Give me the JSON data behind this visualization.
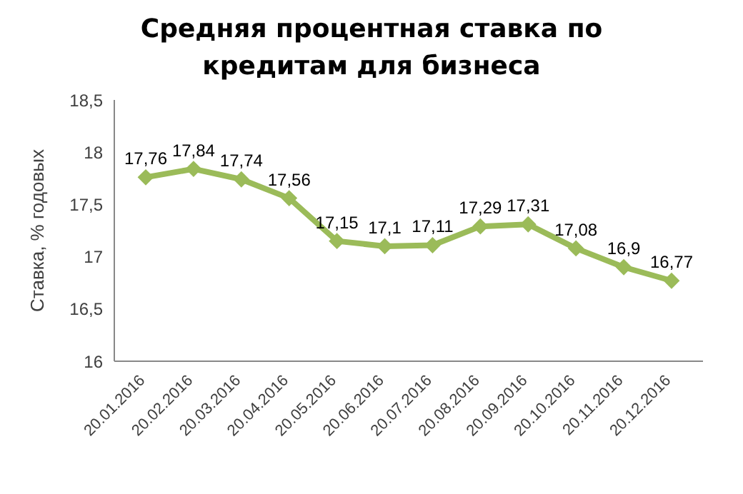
{
  "chart_data": {
    "type": "line",
    "title": "Средняя процентная ставка по кредитам для бизнеса",
    "ylabel": "Ставка, % годовых",
    "categories": [
      "20.01.2016",
      "20.02.2016",
      "20.03.2016",
      "20.04.2016",
      "20.05.2016",
      "20.06.2016",
      "20.07.2016",
      "20.08.2016",
      "20.09.2016",
      "20.10.2016",
      "20.11.2016",
      "20.12.2016"
    ],
    "series": [
      {
        "color": "#9bbb59",
        "values": [
          17.76,
          17.84,
          17.74,
          17.56,
          17.15,
          17.1,
          17.11,
          17.29,
          17.31,
          17.08,
          16.9,
          16.77
        ],
        "value_labels": [
          "17,76",
          "17,84",
          "17,74",
          "17,56",
          "17,15",
          "17,1",
          "17,11",
          "17,29",
          "17,31",
          "17,08",
          "16,9",
          "16,77"
        ]
      }
    ],
    "ylim": [
      16,
      18.5
    ],
    "yticks": [
      16,
      {
        "value": 16.5,
        "label": "16,5"
      },
      17,
      {
        "value": 17.5,
        "label": "17,5"
      },
      18,
      {
        "value": 18.5,
        "label": "18,5"
      }
    ],
    "marker": "diamond",
    "line_style": "solid",
    "grid": false,
    "legend": false
  }
}
